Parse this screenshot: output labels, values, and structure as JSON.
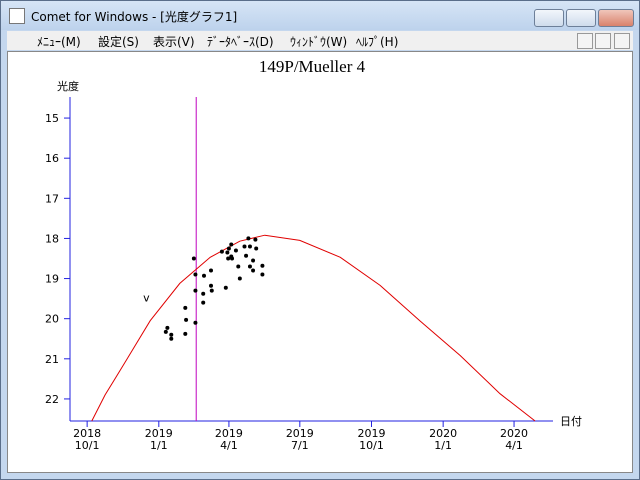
{
  "window": {
    "title": "Comet for Windows - [光度グラフ1]"
  },
  "menu": [
    "ﾒﾆｭｰ(M)",
    "設定(S)",
    "表示(V)",
    "ﾃﾞｰﾀﾍﾞｰｽ(D)",
    "ｳｨﾝﾄﾞｳ(W)",
    "ﾍﾙﾌﾟ(H)"
  ],
  "chart_data": {
    "type": "scatter",
    "title": "149P/Mueller 4",
    "y_label": "光度",
    "x_label": "日付",
    "xlim": [
      "2018-09-09",
      "2020-05-21"
    ],
    "ylim": [
      14.475,
      22.55
    ],
    "y_inverted": true,
    "axis_color": "#2020e0",
    "yticks": [
      15,
      16,
      17,
      18,
      19,
      20,
      21,
      22
    ],
    "xticks": [
      {
        "value": "2018-10-01",
        "label": "2018\n10/1"
      },
      {
        "value": "2019-01-01",
        "label": "2019\n1/1"
      },
      {
        "value": "2019-04-01",
        "label": "2019\n4/1"
      },
      {
        "value": "2019-07-01",
        "label": "2019\n7/1"
      },
      {
        "value": "2019-10-01",
        "label": "2019\n10/1"
      },
      {
        "value": "2020-01-01",
        "label": "2020\n1/1"
      },
      {
        "value": "2020-04-01",
        "label": "2020\n4/1"
      }
    ],
    "marker_date": "2019-02-18",
    "marker_color": "#c000c0",
    "annotations": [
      {
        "text": "v",
        "x": "2018-12-16",
        "y": 19.5
      }
    ],
    "series": [
      {
        "kind": "line",
        "color": "#e00000",
        "x": [
          "2018-10-07",
          "2018-10-24",
          "2018-11-12",
          "2018-12-21",
          "2019-01-28",
          "2019-03-08",
          "2019-04-15",
          "2019-05-17",
          "2019-07-01",
          "2019-08-22",
          "2019-10-12",
          "2019-12-02",
          "2020-01-23",
          "2020-03-14",
          "2020-04-28"
        ],
        "values": [
          22.55,
          21.9,
          21.3,
          20.05,
          19.12,
          18.47,
          18.07,
          17.92,
          18.05,
          18.47,
          19.17,
          20.05,
          20.92,
          21.87,
          22.55
        ]
      },
      {
        "kind": "points",
        "color": "#000000",
        "x": [
          "2019-01-12",
          "2019-01-10",
          "2019-01-17",
          "2019-01-17",
          "2019-02-04",
          "2019-02-05",
          "2019-02-04",
          "2019-02-15",
          "2019-02-17",
          "2019-02-17",
          "2019-02-17",
          "2019-02-27",
          "2019-02-27",
          "2019-02-28",
          "2019-03-09",
          "2019-03-09",
          "2019-03-10",
          "2019-03-23",
          "2019-03-28",
          "2019-03-30",
          "2019-03-31",
          "2019-04-01",
          "2019-04-04",
          "2019-04-04",
          "2019-04-05",
          "2019-04-10",
          "2019-04-13",
          "2019-04-15",
          "2019-04-21",
          "2019-04-23",
          "2019-04-26",
          "2019-04-28",
          "2019-04-28",
          "2019-05-02",
          "2019-05-02",
          "2019-05-05",
          "2019-05-06",
          "2019-05-14",
          "2019-05-14"
        ],
        "values": [
          20.23,
          20.33,
          20.4,
          20.5,
          19.73,
          20.03,
          20.38,
          18.5,
          18.9,
          19.3,
          20.1,
          19.38,
          19.6,
          18.93,
          18.8,
          19.18,
          19.3,
          18.33,
          19.23,
          18.35,
          18.5,
          18.25,
          18.15,
          18.45,
          18.5,
          18.3,
          18.7,
          19.0,
          18.2,
          18.43,
          18.0,
          18.2,
          18.7,
          18.55,
          18.8,
          18.03,
          18.25,
          18.68,
          18.9
        ]
      }
    ]
  }
}
